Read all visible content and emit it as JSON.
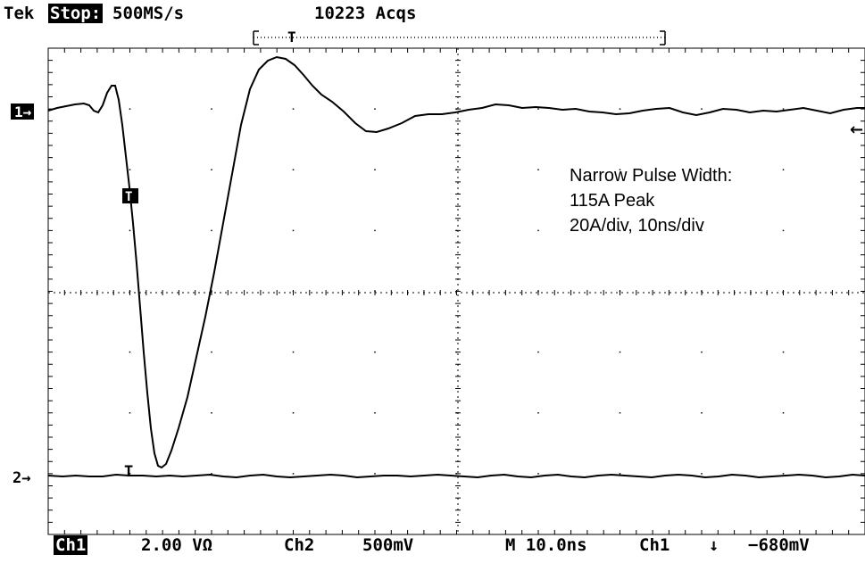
{
  "header": {
    "brand": "Tek",
    "mode": "Stop:",
    "sample_rate": "500MS/s",
    "acquisitions": "10223 Acqs"
  },
  "markers": {
    "ch1": "1→",
    "ch2": "2→",
    "trigger_label": "T",
    "trigger_position_label": "T",
    "trigger_level_arrow": "←"
  },
  "annotation": {
    "line1": "Narrow Pulse Width:",
    "line2": "115A Peak",
    "line3": "20A/div, 10ns/div"
  },
  "footer": {
    "ch1_label": "Ch1",
    "ch1_scale": "2.00 VΩ",
    "ch2_label": "Ch2",
    "ch2_scale": "500mV",
    "timebase": "M 10.0ns",
    "trigger_source": "Ch1",
    "trigger_slope": "↓",
    "trigger_level": "−680mV"
  },
  "colors": {
    "trace": "#000000",
    "background": "#ffffff",
    "graticule": "#000000"
  }
}
